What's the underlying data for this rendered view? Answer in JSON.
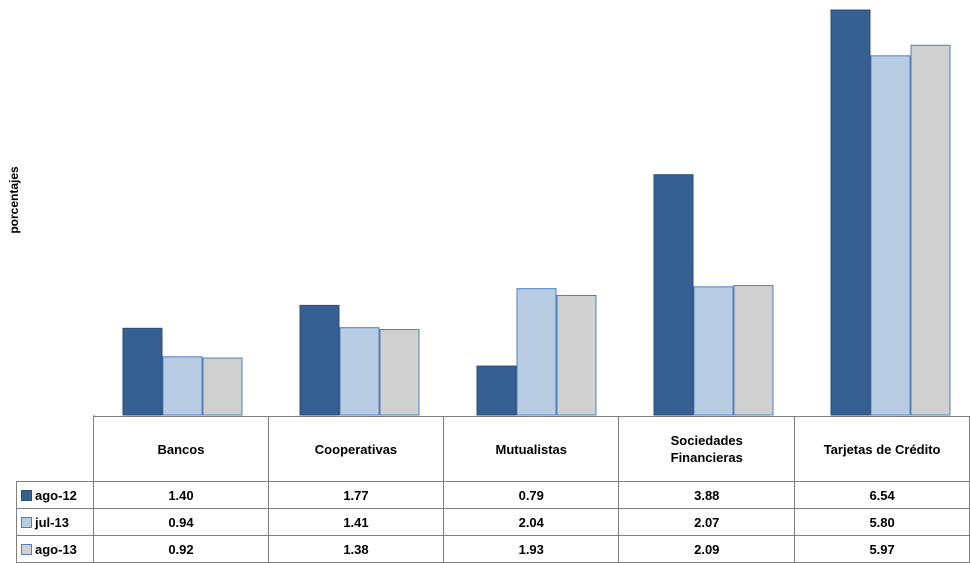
{
  "chart_data": {
    "type": "bar",
    "title": "",
    "ylabel": "porcentajes",
    "xlabel": "",
    "categories": [
      "Bancos",
      "Cooperativas",
      "Mutualistas",
      "Sociedades Financieras",
      "Tarjetas de Crédito"
    ],
    "series": [
      {
        "name": "ago-12",
        "values": [
          1.4,
          1.77,
          0.79,
          3.88,
          6.54
        ],
        "display": [
          "1.40",
          "1.77",
          "0.79",
          "3.88",
          "6.54"
        ],
        "color": "#366092",
        "border": "#2c4d75"
      },
      {
        "name": "jul-13",
        "values": [
          0.94,
          1.41,
          2.04,
          2.07,
          5.8
        ],
        "display": [
          "0.94",
          "1.41",
          "2.04",
          "2.07",
          "5.80"
        ],
        "color": "#b8cce4",
        "border": "#4f81bd"
      },
      {
        "name": "ago-13",
        "values": [
          0.92,
          1.38,
          1.93,
          2.09,
          5.97
        ],
        "display": [
          "0.92",
          "1.38",
          "1.93",
          "2.09",
          "5.97"
        ],
        "color": "#d0d0d0",
        "border": "#4f81bd"
      }
    ],
    "ylim": [
      0,
      6.54
    ],
    "grid": false,
    "legend": "table"
  }
}
